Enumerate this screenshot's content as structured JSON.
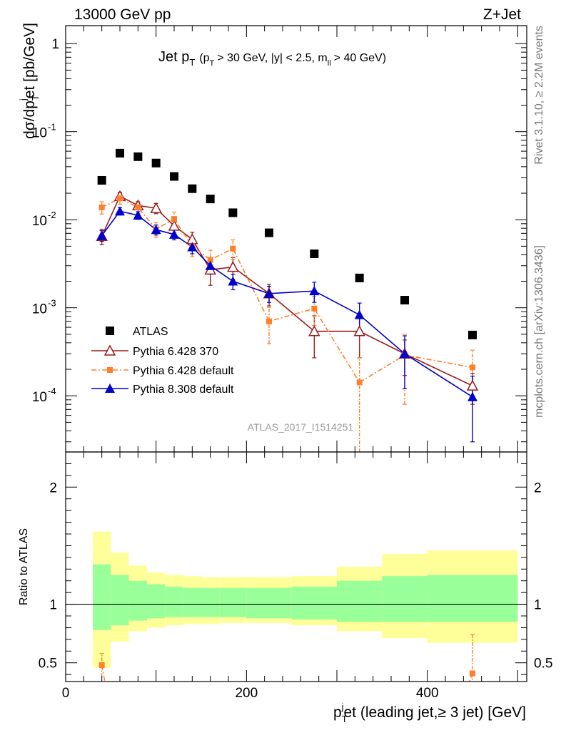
{
  "header": {
    "energy": "13000 GeV pp",
    "process": "Z+Jet"
  },
  "side_labels": {
    "rivet": "Rivet 3.1.10, ≥ 2.2M events",
    "mcplots": "mcplots.cern.ch [arXiv:1306.3436]"
  },
  "chart_data": [
    {
      "type": "scatter",
      "panel": "main",
      "title": {
        "prefix": "Jet p",
        "sub": "T",
        "cuts": "(p",
        "cuts_sub": "T",
        "cuts_rest": "> 30 GeV, |y| < 2.5, m",
        "cuts_sub2": "ll",
        "cuts_end": "> 40 GeV)"
      },
      "ylabel": {
        "a": "dσ/dp",
        "sub": "T",
        "sup": "j",
        "b": "et [pb/GeV]"
      },
      "yscale": "log",
      "ylim": [
        2.3e-05,
        1.6
      ],
      "xlim": [
        0,
        510
      ],
      "y_tick_labels": [
        {
          "base": "10",
          "exp": "-4"
        },
        {
          "base": "10",
          "exp": "-3"
        },
        {
          "base": "10",
          "exp": "-2"
        },
        {
          "base": "10",
          "exp": "-1"
        },
        {
          "base": "1",
          "exp": ""
        }
      ],
      "y_tick_values": [
        0.0001,
        0.001,
        0.01,
        0.1,
        1
      ],
      "watermark": "ATLAS_2017_I1514251",
      "legend_position": "lower-left",
      "x_bins": [
        [
          30,
          50
        ],
        [
          50,
          70
        ],
        [
          70,
          90
        ],
        [
          90,
          110
        ],
        [
          110,
          130
        ],
        [
          130,
          150
        ],
        [
          150,
          170
        ],
        [
          170,
          200
        ],
        [
          200,
          250
        ],
        [
          250,
          300
        ],
        [
          300,
          350
        ],
        [
          350,
          400
        ],
        [
          400,
          500
        ]
      ],
      "x": [
        40,
        60,
        80,
        100,
        120,
        140,
        160,
        185,
        225,
        275,
        325,
        375,
        450
      ],
      "series": [
        {
          "name": "ATLAS",
          "color": "#000000",
          "marker": "square",
          "values": [
            0.028,
            0.057,
            0.052,
            0.044,
            0.031,
            0.0225,
            0.0172,
            0.012,
            0.0071,
            0.0041,
            0.00218,
            0.00122,
            0.00049
          ]
        },
        {
          "name": "Pythia 6.428 370",
          "color": "#9b1b1b",
          "marker": "open-triangle",
          "line": "solid",
          "values": [
            0.0065,
            0.0185,
            0.0145,
            0.0135,
            0.0085,
            0.006,
            0.0027,
            0.0029,
            0.00145,
            0.00054,
            0.00054,
            0.0003,
            0.00013
          ],
          "err_lo": [
            0.0013,
            0.002,
            0.0015,
            0.0018,
            0.0015,
            0.0012,
            0.0009,
            0.0008,
            0.0004,
            0.00027,
            0.00027,
            0.00013,
            5e-05
          ],
          "err_hi": [
            0.0013,
            0.002,
            0.0015,
            0.0018,
            0.0015,
            0.0012,
            0.0009,
            0.0008,
            0.0004,
            0.00027,
            0.00027,
            0.00013,
            5e-05
          ]
        },
        {
          "name": "Pythia 6.428 default",
          "color": "#ff7f2a",
          "marker": "square",
          "line": "dash-dot",
          "values": [
            0.0138,
            0.0175,
            0.0138,
            0.0078,
            0.0102,
            0.005,
            0.0035,
            0.0047,
            0.0007,
            0.00098,
            0.000142,
            0.00029,
            0.00021
          ],
          "err_lo": [
            0.0022,
            0.0025,
            0.002,
            0.0015,
            0.002,
            0.0012,
            0.001,
            0.0012,
            0.00031,
            0.00035,
            0.00013,
            0.00021,
            9e-05
          ],
          "err_hi": [
            0.0022,
            0.0025,
            0.002,
            0.0015,
            0.002,
            0.0012,
            0.001,
            0.0012,
            0.00031,
            0.00035,
            0.00013,
            0.00021,
            0.00012
          ]
        },
        {
          "name": "Pythia 8.308 default",
          "color": "#0000cc",
          "marker": "filled-triangle",
          "line": "solid",
          "values": [
            0.0066,
            0.0125,
            0.0112,
            0.0077,
            0.0068,
            0.0049,
            0.003,
            0.002,
            0.00145,
            0.00155,
            0.00083,
            0.0003,
            9.7e-05
          ],
          "err_lo": [
            0.0009,
            0.0012,
            0.0011,
            0.001,
            0.0009,
            0.0008,
            0.0006,
            0.0004,
            0.0003,
            0.0004,
            0.0003,
            0.00018,
            6.7e-05
          ],
          "err_hi": [
            0.0009,
            0.0012,
            0.0011,
            0.001,
            0.0009,
            0.0008,
            0.0006,
            0.0004,
            0.0003,
            0.0004,
            0.0003,
            0.00018,
            7e-05
          ]
        }
      ]
    },
    {
      "type": "area",
      "panel": "ratio",
      "ylabel": "Ratio to ATLAS",
      "xlabel": {
        "a": "p",
        "sub": "T",
        "sup": "j",
        "b": "et (leading jet,≥ 3 jet) [GeV]"
      },
      "xlim": [
        0,
        510
      ],
      "ylim": [
        0.34,
        2.3
      ],
      "x_tick_labels": [
        "0",
        "200",
        "400"
      ],
      "x_tick_values": [
        0,
        200,
        400
      ],
      "y_tick_labels": [
        "0.5",
        "1",
        "2"
      ],
      "y_tick_values": [
        0.5,
        1,
        2
      ],
      "reference_line": 1,
      "bands": {
        "x_edges": [
          30,
          50,
          70,
          90,
          110,
          130,
          150,
          170,
          200,
          250,
          300,
          350,
          400,
          500
        ],
        "green_low": [
          0.78,
          0.82,
          0.86,
          0.88,
          0.89,
          0.89,
          0.89,
          0.89,
          0.88,
          0.87,
          0.85,
          0.85,
          0.85
        ],
        "green_high": [
          1.34,
          1.25,
          1.2,
          1.17,
          1.15,
          1.14,
          1.14,
          1.14,
          1.14,
          1.15,
          1.2,
          1.24,
          1.25
        ],
        "yellow_low": [
          0.46,
          0.68,
          0.77,
          0.8,
          0.82,
          0.83,
          0.83,
          0.84,
          0.84,
          0.82,
          0.77,
          0.71,
          0.67
        ],
        "yellow_high": [
          1.62,
          1.44,
          1.33,
          1.27,
          1.25,
          1.24,
          1.23,
          1.23,
          1.23,
          1.24,
          1.32,
          1.43,
          1.46
        ]
      },
      "series": [
        {
          "name": "Pythia 6.428 default",
          "color": "#ff7f2a",
          "marker": "square",
          "x": [
            40,
            450
          ],
          "values": [
            0.48,
            0.41
          ],
          "err_lo": [
            0.1,
            0.1
          ],
          "err_hi": [
            0.1,
            0.33
          ]
        }
      ]
    }
  ]
}
